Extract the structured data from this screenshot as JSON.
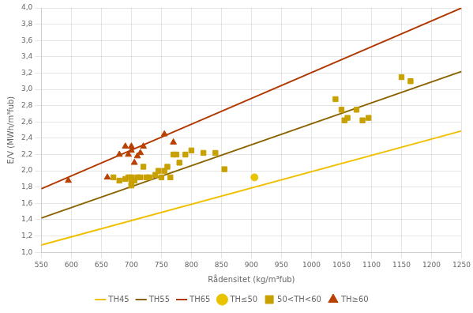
{
  "chart_data": {
    "type": "scatter",
    "xlabel": "Rådensitet (kg/m³fub)",
    "ylabel": "E/V (MWh/m³fub)",
    "xlim": [
      550,
      1250
    ],
    "ylim": [
      1.0,
      4.0
    ],
    "xticks": [
      550,
      600,
      650,
      700,
      750,
      800,
      850,
      900,
      950,
      1000,
      1050,
      1100,
      1150,
      1200,
      1250
    ],
    "yticks": [
      {
        "value": 1.0,
        "label": "1,0"
      },
      {
        "value": 1.2,
        "label": "1,2"
      },
      {
        "value": 1.4,
        "label": "1,4"
      },
      {
        "value": 1.6,
        "label": "1,6"
      },
      {
        "value": 1.8,
        "label": "1,8"
      },
      {
        "value": 2.0,
        "label": "2,0"
      },
      {
        "value": 2.2,
        "label": "2,2"
      },
      {
        "value": 2.4,
        "label": "2,4"
      },
      {
        "value": 2.6,
        "label": "2,6"
      },
      {
        "value": 2.8,
        "label": "2,8"
      },
      {
        "value": 3.0,
        "label": "3,0"
      },
      {
        "value": 3.2,
        "label": "3,2"
      },
      {
        "value": 3.4,
        "label": "3,4"
      },
      {
        "value": 3.6,
        "label": "3,6"
      },
      {
        "value": 3.8,
        "label": "3,8"
      },
      {
        "value": 4.0,
        "label": "4,0"
      }
    ],
    "grid": true,
    "legend": "bottom",
    "series": [
      {
        "name": "TH45",
        "type": "line",
        "color": "#F0C000",
        "x": [
          550,
          1250
        ],
        "values": [
          1.09,
          2.49
        ]
      },
      {
        "name": "TH55",
        "type": "line",
        "color": "#8B6400",
        "x": [
          550,
          1250
        ],
        "values": [
          1.42005,
          3.21975
        ]
      },
      {
        "name": "TH65",
        "type": "line",
        "color": "#B03800",
        "x": [
          550,
          1250
        ],
        "values": [
          1.77905,
          3.99875
        ]
      },
      {
        "name": "TH≤50",
        "type": "scatter",
        "marker": "circle",
        "color": "#E8C400",
        "x": [
          905
        ],
        "values": [
          1.92
        ]
      },
      {
        "name": "50<TH<60",
        "type": "scatter",
        "marker": "square",
        "color": "#C8A000",
        "x": [
          670,
          680,
          690,
          695,
          700,
          700,
          700,
          705,
          710,
          715,
          720,
          725,
          730,
          740,
          745,
          750,
          755,
          760,
          765,
          770,
          775,
          780,
          790,
          800,
          820,
          840,
          855,
          1040,
          1050,
          1055,
          1060,
          1075,
          1085,
          1095,
          1150,
          1165
        ],
        "values": [
          1.92,
          1.88,
          1.9,
          1.92,
          1.82,
          1.85,
          1.92,
          1.88,
          1.92,
          1.92,
          2.05,
          1.92,
          1.92,
          1.95,
          2.0,
          1.92,
          2.0,
          2.05,
          1.92,
          2.2,
          2.2,
          2.1,
          2.2,
          2.25,
          2.22,
          2.22,
          2.02,
          2.88,
          2.75,
          2.62,
          2.65,
          2.75,
          2.62,
          2.65,
          3.15,
          3.1
        ]
      },
      {
        "name": "TH≥60",
        "type": "scatter",
        "marker": "triangle",
        "color": "#B84000",
        "x": [
          595,
          660,
          680,
          690,
          695,
          700,
          700,
          705,
          710,
          715,
          720,
          755,
          770
        ],
        "values": [
          1.88,
          1.92,
          2.2,
          2.3,
          2.2,
          2.25,
          2.3,
          2.1,
          2.18,
          2.22,
          2.3,
          2.45,
          2.35
        ]
      }
    ]
  }
}
